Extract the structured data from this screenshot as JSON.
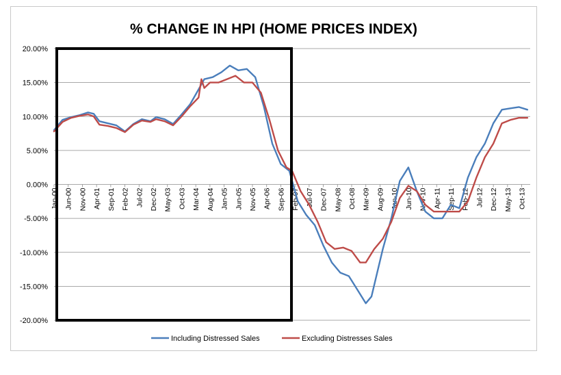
{
  "chart_data": {
    "type": "line",
    "title": "% CHANGE IN HPI (HOME PRICES INDEX)",
    "xlabel": "",
    "ylabel": "",
    "ylim": [
      -0.2,
      0.2
    ],
    "yticks": [
      "20.00%",
      "15.00%",
      "10.00%",
      "5.00%",
      "0.00%",
      "-5.00%",
      "-10.00%",
      "-15.00%",
      "-20.00%"
    ],
    "x_start": "Jan-00",
    "x_end": "Jan-14",
    "xticks": [
      "Jan-00",
      "Jun-00",
      "Nov-00",
      "Apr-01",
      "Sep-01",
      "Feb-02",
      "Jul-02",
      "Dec-02",
      "May-03",
      "Oct-03",
      "Mar-04",
      "Aug-04",
      "Jan-05",
      "Jun-05",
      "Nov-05",
      "Apr-06",
      "Sep-06",
      "Feb-07",
      "Jul-07",
      "Dec-07",
      "May-08",
      "Oct-08",
      "Mar-09",
      "Aug-09",
      "Jan-10",
      "Jun-10",
      "Nov-10",
      "Apr-11",
      "Sep-11",
      "Feb-12",
      "Jul-12",
      "Dec-12",
      "May-13",
      "Oct-13"
    ],
    "grid": true,
    "legend": "bottom",
    "highlight_box": {
      "x_from": "Jan-00",
      "x_to": "Jan-07",
      "y_from": -0.2,
      "y_to": 0.2
    },
    "series": [
      {
        "name": "Including Distressed Sales",
        "color": "#4a7ebb",
        "points": [
          [
            "Jan-00",
            0.08
          ],
          [
            "Apr-00",
            0.095
          ],
          [
            "Jul-00",
            0.099
          ],
          [
            "Oct-00",
            0.102
          ],
          [
            "Jan-01",
            0.106
          ],
          [
            "Mar-01",
            0.104
          ],
          [
            "May-01",
            0.093
          ],
          [
            "Aug-01",
            0.09
          ],
          [
            "Nov-01",
            0.087
          ],
          [
            "Feb-02",
            0.078
          ],
          [
            "May-02",
            0.089
          ],
          [
            "Aug-02",
            0.096
          ],
          [
            "Nov-02",
            0.093
          ],
          [
            "Jan-03",
            0.099
          ],
          [
            "Apr-03",
            0.096
          ],
          [
            "Jul-03",
            0.089
          ],
          [
            "Oct-03",
            0.103
          ],
          [
            "Jan-04",
            0.118
          ],
          [
            "Apr-04",
            0.14
          ],
          [
            "Jun-04",
            0.155
          ],
          [
            "Sep-04",
            0.158
          ],
          [
            "Dec-04",
            0.165
          ],
          [
            "Mar-05",
            0.175
          ],
          [
            "Jun-05",
            0.168
          ],
          [
            "Sep-05",
            0.17
          ],
          [
            "Dec-05",
            0.158
          ],
          [
            "Mar-06",
            0.115
          ],
          [
            "Jun-06",
            0.06
          ],
          [
            "Sep-06",
            0.03
          ],
          [
            "Dec-06",
            0.02
          ],
          [
            "Mar-07",
            -0.025
          ],
          [
            "Jun-07",
            -0.045
          ],
          [
            "Sep-07",
            -0.06
          ],
          [
            "Dec-07",
            -0.09
          ],
          [
            "Mar-08",
            -0.115
          ],
          [
            "Jun-08",
            -0.13
          ],
          [
            "Sep-08",
            -0.135
          ],
          [
            "Dec-08",
            -0.155
          ],
          [
            "Mar-09",
            -0.175
          ],
          [
            "May-09",
            -0.165
          ],
          [
            "Jul-09",
            -0.13
          ],
          [
            "Sep-09",
            -0.095
          ],
          [
            "Dec-09",
            -0.05
          ],
          [
            "Mar-10",
            0.005
          ],
          [
            "Jun-10",
            0.025
          ],
          [
            "Sep-10",
            -0.01
          ],
          [
            "Dec-10",
            -0.04
          ],
          [
            "Mar-11",
            -0.05
          ],
          [
            "Jun-11",
            -0.05
          ],
          [
            "Sep-11",
            -0.03
          ],
          [
            "Dec-11",
            -0.035
          ],
          [
            "Mar-12",
            0.01
          ],
          [
            "Jun-12",
            0.04
          ],
          [
            "Sep-12",
            0.06
          ],
          [
            "Dec-12",
            0.09
          ],
          [
            "Mar-13",
            0.11
          ],
          [
            "Jun-13",
            0.112
          ],
          [
            "Sep-13",
            0.114
          ],
          [
            "Dec-13",
            0.11
          ]
        ]
      },
      {
        "name": "Excluding Distresses Sales",
        "color": "#be4b48",
        "points": [
          [
            "Jan-00",
            0.078
          ],
          [
            "Apr-00",
            0.092
          ],
          [
            "Jul-00",
            0.098
          ],
          [
            "Oct-00",
            0.101
          ],
          [
            "Jan-01",
            0.103
          ],
          [
            "Mar-01",
            0.1
          ],
          [
            "May-01",
            0.088
          ],
          [
            "Aug-01",
            0.086
          ],
          [
            "Nov-01",
            0.083
          ],
          [
            "Feb-02",
            0.077
          ],
          [
            "May-02",
            0.088
          ],
          [
            "Aug-02",
            0.094
          ],
          [
            "Nov-02",
            0.092
          ],
          [
            "Jan-03",
            0.096
          ],
          [
            "Apr-03",
            0.093
          ],
          [
            "Jul-03",
            0.087
          ],
          [
            "Oct-03",
            0.1
          ],
          [
            "Jan-04",
            0.115
          ],
          [
            "Apr-04",
            0.128
          ],
          [
            "May-04",
            0.155
          ],
          [
            "Jun-04",
            0.142
          ],
          [
            "Aug-04",
            0.15
          ],
          [
            "Nov-04",
            0.15
          ],
          [
            "Feb-05",
            0.155
          ],
          [
            "May-05",
            0.16
          ],
          [
            "Aug-05",
            0.15
          ],
          [
            "Nov-05",
            0.15
          ],
          [
            "Feb-06",
            0.135
          ],
          [
            "May-06",
            0.095
          ],
          [
            "Aug-06",
            0.05
          ],
          [
            "Nov-06",
            0.025
          ],
          [
            "Jan-07",
            0.02
          ],
          [
            "Apr-07",
            -0.01
          ],
          [
            "Jul-07",
            -0.03
          ],
          [
            "Oct-07",
            -0.055
          ],
          [
            "Jan-08",
            -0.085
          ],
          [
            "Apr-08",
            -0.095
          ],
          [
            "Jul-08",
            -0.093
          ],
          [
            "Oct-08",
            -0.098
          ],
          [
            "Jan-09",
            -0.115
          ],
          [
            "Mar-09",
            -0.115
          ],
          [
            "Jun-09",
            -0.095
          ],
          [
            "Sep-09",
            -0.08
          ],
          [
            "Dec-09",
            -0.055
          ],
          [
            "Mar-10",
            -0.02
          ],
          [
            "Jun-10",
            -0.002
          ],
          [
            "Sep-10",
            -0.01
          ],
          [
            "Dec-10",
            -0.03
          ],
          [
            "Mar-11",
            -0.04
          ],
          [
            "Jun-11",
            -0.04
          ],
          [
            "Sep-11",
            -0.04
          ],
          [
            "Dec-11",
            -0.04
          ],
          [
            "Mar-12",
            -0.025
          ],
          [
            "Jun-12",
            0.01
          ],
          [
            "Sep-12",
            0.04
          ],
          [
            "Dec-12",
            0.06
          ],
          [
            "Mar-13",
            0.09
          ],
          [
            "Jun-13",
            0.095
          ],
          [
            "Sep-13",
            0.098
          ],
          [
            "Dec-13",
            0.098
          ]
        ]
      }
    ]
  }
}
